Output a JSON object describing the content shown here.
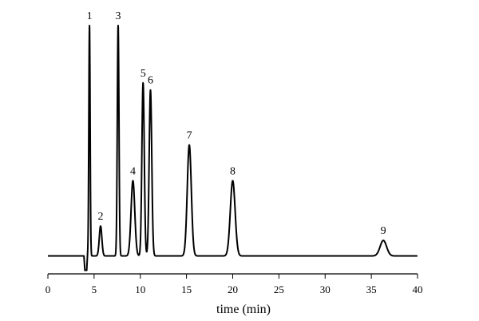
{
  "chart_data": {
    "type": "line",
    "title": "",
    "xlabel": "time (min)",
    "ylabel": "",
    "xlim": [
      0,
      40
    ],
    "ylim": [
      0,
      100
    ],
    "x_ticks": [
      0,
      5,
      10,
      15,
      20,
      25,
      30,
      35,
      40
    ],
    "grid": false,
    "legend": "none",
    "baseline": 3.5,
    "trace_start": 0,
    "trace_end": 40,
    "dip": {
      "x": 4.0,
      "depth": 6
    },
    "peaks": [
      {
        "label": "1",
        "time": 4.5,
        "height": 100,
        "width": 0.07
      },
      {
        "label": "2",
        "time": 5.7,
        "height": 16,
        "width": 0.14
      },
      {
        "label": "3",
        "time": 7.6,
        "height": 100,
        "width": 0.09
      },
      {
        "label": "4",
        "time": 9.2,
        "height": 35,
        "width": 0.2
      },
      {
        "label": "5",
        "time": 10.3,
        "height": 76,
        "width": 0.13
      },
      {
        "label": "6",
        "time": 11.1,
        "height": 73,
        "width": 0.14
      },
      {
        "label": "7",
        "time": 15.3,
        "height": 50,
        "width": 0.22
      },
      {
        "label": "8",
        "time": 20.0,
        "height": 35,
        "width": 0.26
      },
      {
        "label": "9",
        "time": 36.3,
        "height": 10,
        "width": 0.35
      }
    ],
    "colors": {
      "trace": "#000000",
      "axis": "#000000"
    }
  }
}
